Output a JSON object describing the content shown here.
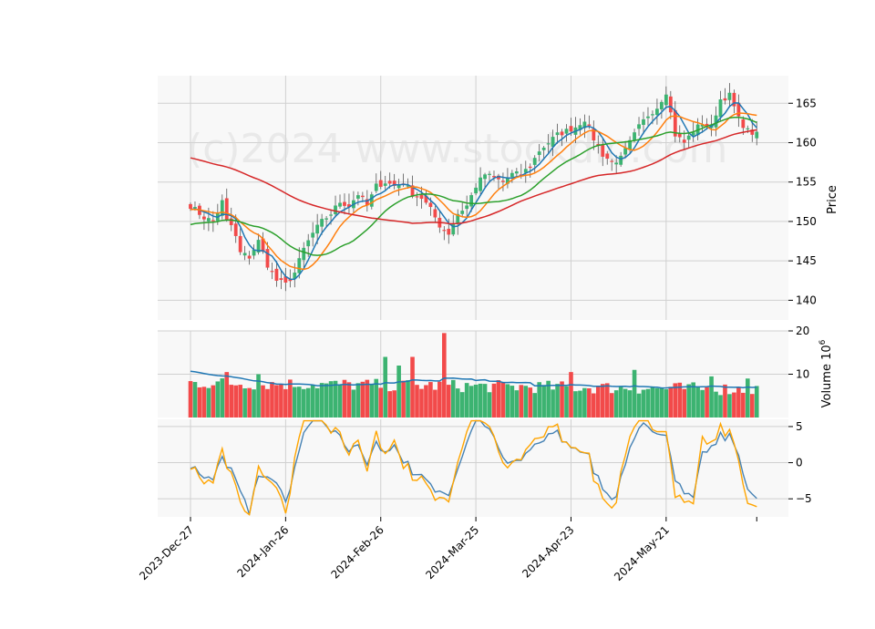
{
  "chart_data": {
    "type": "candlestick",
    "watermark": "(c)2024 www.stockdio.com",
    "x_dates": [
      "2023-Dec-27",
      "2024-Jan-26",
      "2024-Feb-26",
      "2024-Mar-25",
      "2024-Apr-23",
      "2024-May-21"
    ],
    "x_tick_index": [
      0,
      21,
      42,
      63,
      84,
      105
    ],
    "n_bars": 126,
    "up_color": "#3cb371",
    "down_color": "#f24a4a",
    "price_panel": {
      "ylabel": "Price",
      "ylim": [
        137.5,
        168.5
      ],
      "yticks": [
        140,
        145,
        150,
        155,
        160,
        165
      ],
      "key_closes": [
        [
          0,
          152.0
        ],
        [
          3,
          150.5
        ],
        [
          5,
          150.0
        ],
        [
          7,
          152.5
        ],
        [
          8,
          150.0
        ],
        [
          9,
          149.5
        ],
        [
          10,
          148.0
        ],
        [
          11,
          146.0
        ],
        [
          13,
          145.5
        ],
        [
          15,
          147.5
        ],
        [
          17,
          144.5
        ],
        [
          19,
          142.5
        ],
        [
          21,
          142.0
        ],
        [
          23,
          143.5
        ],
        [
          25,
          146.5
        ],
        [
          27,
          148.5
        ],
        [
          29,
          150.0
        ],
        [
          31,
          151.0
        ],
        [
          33,
          152.5
        ],
        [
          35,
          152.0
        ],
        [
          37,
          153.5
        ],
        [
          39,
          152.0
        ],
        [
          41,
          154.5
        ],
        [
          43,
          155.0
        ],
        [
          45,
          154.5
        ],
        [
          47,
          155.0
        ],
        [
          49,
          153.5
        ],
        [
          51,
          153.0
        ],
        [
          53,
          151.5
        ],
        [
          55,
          149.5
        ],
        [
          57,
          148.5
        ],
        [
          59,
          151.0
        ],
        [
          61,
          152.0
        ],
        [
          63,
          154.5
        ],
        [
          65,
          156.0
        ],
        [
          67,
          155.5
        ],
        [
          69,
          155.0
        ],
        [
          71,
          156.0
        ],
        [
          73,
          156.0
        ],
        [
          75,
          157.0
        ],
        [
          77,
          159.0
        ],
        [
          79,
          160.0
        ],
        [
          81,
          161.0
        ],
        [
          83,
          161.5
        ],
        [
          85,
          162.0
        ],
        [
          87,
          163.0
        ],
        [
          89,
          160.5
        ],
        [
          91,
          158.5
        ],
        [
          93,
          157.5
        ],
        [
          95,
          158.0
        ],
        [
          97,
          160.0
        ],
        [
          99,
          162.0
        ],
        [
          101,
          163.5
        ],
        [
          103,
          164.5
        ],
        [
          105,
          166.5
        ],
        [
          107,
          161.0
        ],
        [
          109,
          160.0
        ],
        [
          111,
          161.5
        ],
        [
          113,
          162.5
        ],
        [
          115,
          162.0
        ],
        [
          117,
          165.5
        ],
        [
          119,
          166.0
        ],
        [
          121,
          163.0
        ],
        [
          123,
          161.5
        ],
        [
          125,
          161.0
        ]
      ],
      "moving_averages": [
        {
          "color": "#1f77b4",
          "period": 5
        },
        {
          "color": "#ff7f0e",
          "period": 10
        },
        {
          "color": "#2ca02c",
          "period": 20
        },
        {
          "color": "#d62728",
          "period": 50
        }
      ]
    },
    "volume_panel": {
      "ylabel": "Volume  10",
      "ylabel_exponent": "6",
      "ylim": [
        0,
        20
      ],
      "yticks": [
        10,
        20
      ],
      "ma_color": "#1f77b4"
    },
    "indicator_panel": {
      "ylim": [
        -7.5,
        6
      ],
      "yticks": [
        5,
        0,
        -5
      ],
      "line_colors": [
        "#4682b4",
        "#ffa500"
      ]
    }
  }
}
